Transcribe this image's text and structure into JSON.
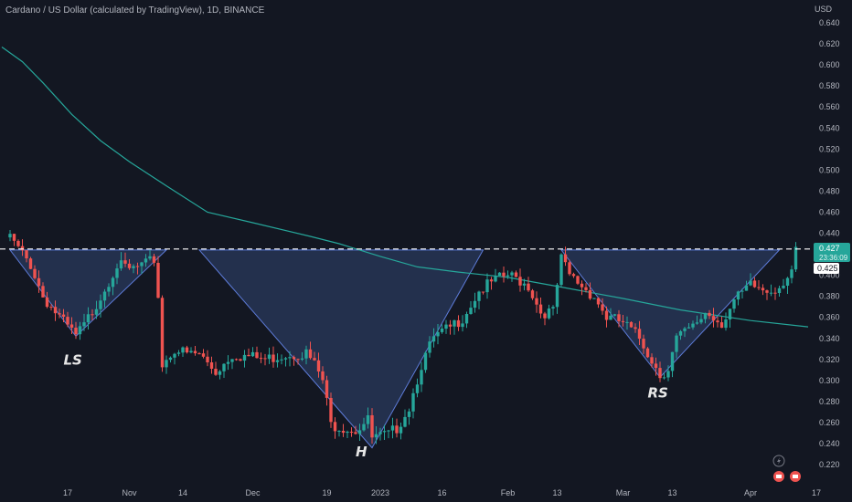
{
  "header": {
    "title": "Cardano / US Dollar (calculated by TradingView), 1D, BINANCE",
    "currency": "USD"
  },
  "price_tags": {
    "last": "0.427",
    "countdown": "23:36:09",
    "level": "0.425"
  },
  "patterns": [
    "LS",
    "H",
    "RS"
  ],
  "colors": {
    "background": "#131722",
    "up": "#26a69a",
    "down": "#ef5350",
    "ma": "#26a69a",
    "pattern_fill": "#2a3a5c",
    "pattern_edge": "#5d7bd8"
  },
  "icons": [
    "lightning-icon",
    "flag-icon",
    "flag-icon"
  ],
  "chart_data": {
    "type": "candlestick",
    "title": "Cardano / US Dollar (calculated by TradingView), 1D, BINANCE",
    "ylabel": "USD",
    "ylim": [
      0.205,
      0.655
    ],
    "yticks": [
      "0.640",
      "0.620",
      "0.600",
      "0.580",
      "0.560",
      "0.540",
      "0.520",
      "0.500",
      "0.480",
      "0.460",
      "0.440",
      "0.400",
      "0.380",
      "0.360",
      "0.340",
      "0.320",
      "0.300",
      "0.280",
      "0.260",
      "0.240",
      "0.220"
    ],
    "xticks": [
      {
        "label": "17",
        "date": "2022-10-17"
      },
      {
        "label": "Nov",
        "date": "2022-11-01"
      },
      {
        "label": "14",
        "date": "2022-11-14"
      },
      {
        "label": "Dec",
        "date": "2022-12-01"
      },
      {
        "label": "19",
        "date": "2022-12-19"
      },
      {
        "label": "2023",
        "date": "2023-01-01"
      },
      {
        "label": "16",
        "date": "2023-01-16"
      },
      {
        "label": "Feb",
        "date": "2023-02-01"
      },
      {
        "label": "13",
        "date": "2023-02-13"
      },
      {
        "label": "Mar",
        "date": "2023-03-01"
      },
      {
        "label": "13",
        "date": "2023-03-13"
      },
      {
        "label": "Apr",
        "date": "2023-04-01"
      },
      {
        "label": "17",
        "date": "2023-04-17"
      }
    ],
    "neckline": 0.425,
    "anchors": [
      [
        "2022-10-03",
        0.436
      ],
      [
        "2022-10-05",
        0.425
      ],
      [
        "2022-10-08",
        0.41
      ],
      [
        "2022-10-11",
        0.38
      ],
      [
        "2022-10-13",
        0.37
      ],
      [
        "2022-10-16",
        0.355
      ],
      [
        "2022-10-19",
        0.342
      ],
      [
        "2022-10-21",
        0.352
      ],
      [
        "2022-10-25",
        0.38
      ],
      [
        "2022-10-29",
        0.41
      ],
      [
        "2022-11-01",
        0.405
      ],
      [
        "2022-11-05",
        0.41
      ],
      [
        "2022-11-07",
        0.415
      ],
      [
        "2022-11-08",
        0.38
      ],
      [
        "2022-11-09",
        0.315
      ],
      [
        "2022-11-12",
        0.33
      ],
      [
        "2022-11-15",
        0.325
      ],
      [
        "2022-11-18",
        0.325
      ],
      [
        "2022-11-22",
        0.308
      ],
      [
        "2022-11-26",
        0.325
      ],
      [
        "2022-12-01",
        0.322
      ],
      [
        "2022-12-04",
        0.32
      ],
      [
        "2022-12-09",
        0.325
      ],
      [
        "2022-12-14",
        0.326
      ],
      [
        "2022-12-16",
        0.315
      ],
      [
        "2022-12-18",
        0.3
      ],
      [
        "2022-12-20",
        0.258
      ],
      [
        "2022-12-24",
        0.255
      ],
      [
        "2022-12-26",
        0.253
      ],
      [
        "2022-12-29",
        0.262
      ],
      [
        "2022-12-30",
        0.245
      ],
      [
        "2023-01-03",
        0.248
      ],
      [
        "2023-01-05",
        0.255
      ],
      [
        "2023-01-08",
        0.275
      ],
      [
        "2023-01-11",
        0.315
      ],
      [
        "2023-01-14",
        0.34
      ],
      [
        "2023-01-18",
        0.35
      ],
      [
        "2023-01-21",
        0.36
      ],
      [
        "2023-01-25",
        0.385
      ],
      [
        "2023-01-29",
        0.395
      ],
      [
        "2023-02-01",
        0.4
      ],
      [
        "2023-02-04",
        0.395
      ],
      [
        "2023-02-06",
        0.39
      ],
      [
        "2023-02-09",
        0.365
      ],
      [
        "2023-02-12",
        0.365
      ],
      [
        "2023-02-14",
        0.415
      ],
      [
        "2023-02-16",
        0.4
      ],
      [
        "2023-02-19",
        0.39
      ],
      [
        "2023-02-22",
        0.38
      ],
      [
        "2023-02-25",
        0.36
      ],
      [
        "2023-03-01",
        0.355
      ],
      [
        "2023-03-05",
        0.34
      ],
      [
        "2023-03-08",
        0.32
      ],
      [
        "2023-03-10",
        0.305
      ],
      [
        "2023-03-12",
        0.312
      ],
      [
        "2023-03-14",
        0.34
      ],
      [
        "2023-03-18",
        0.35
      ],
      [
        "2023-03-21",
        0.365
      ],
      [
        "2023-03-25",
        0.355
      ],
      [
        "2023-03-28",
        0.375
      ],
      [
        "2023-04-01",
        0.39
      ],
      [
        "2023-04-05",
        0.385
      ],
      [
        "2023-04-08",
        0.39
      ],
      [
        "2023-04-11",
        0.405
      ],
      [
        "2023-04-12",
        0.427
      ]
    ],
    "ma_series": [
      [
        "2022-10-01",
        0.617
      ],
      [
        "2022-10-06",
        0.603
      ],
      [
        "2022-10-11",
        0.583
      ],
      [
        "2022-10-18",
        0.553
      ],
      [
        "2022-10-25",
        0.528
      ],
      [
        "2022-11-01",
        0.508
      ],
      [
        "2022-11-10",
        0.485
      ],
      [
        "2022-11-20",
        0.46
      ],
      [
        "2022-12-01",
        0.45
      ],
      [
        "2022-12-15",
        0.437
      ],
      [
        "2022-12-22",
        0.43
      ],
      [
        "2023-01-01",
        0.418
      ],
      [
        "2023-01-10",
        0.408
      ],
      [
        "2023-01-20",
        0.403
      ],
      [
        "2023-02-01",
        0.398
      ],
      [
        "2023-02-15",
        0.388
      ],
      [
        "2023-03-01",
        0.378
      ],
      [
        "2023-03-15",
        0.367
      ],
      [
        "2023-04-01",
        0.357
      ],
      [
        "2023-04-15",
        0.351
      ]
    ],
    "triangles": [
      {
        "label": "LS",
        "points": [
          [
            "2022-10-03",
            0.424
          ],
          [
            "2022-11-10",
            0.424
          ],
          [
            "2022-10-19",
            0.342
          ]
        ]
      },
      {
        "label": "H",
        "points": [
          [
            "2022-11-18",
            0.424
          ],
          [
            "2023-01-26",
            0.424
          ],
          [
            "2022-12-30",
            0.236
          ]
        ]
      },
      {
        "label": "RS",
        "points": [
          [
            "2023-02-14",
            0.424
          ],
          [
            "2023-04-08",
            0.424
          ],
          [
            "2023-03-10",
            0.303
          ]
        ]
      }
    ]
  }
}
